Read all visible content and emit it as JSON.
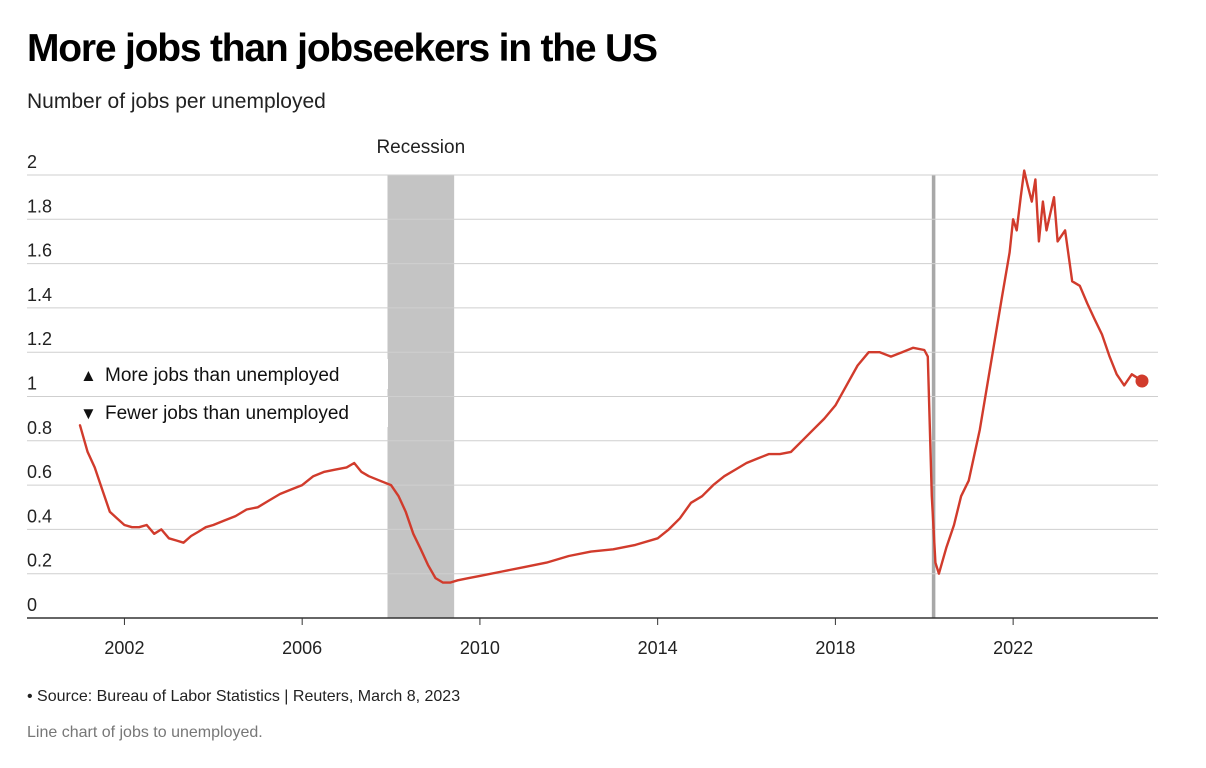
{
  "header": {
    "title": "More jobs than jobseekers in the US",
    "subtitle": "Number of jobs per unemployed"
  },
  "footer": {
    "source": "• Source: Bureau of Labor Statistics | Reuters, March 8, 2023",
    "caption": "Line chart of jobs to unemployed."
  },
  "colors": {
    "line": "#d13b2c",
    "recession": "#c4c4c4",
    "covid_band": "#a8a8a8",
    "grid": "#cfcfcf",
    "axis": "#333333",
    "text": "#222222"
  },
  "chart_data": {
    "type": "line",
    "title": "More jobs than jobseekers in the US",
    "subtitle": "Number of jobs per unemployed",
    "xlabel": "",
    "ylabel": "",
    "xlim": [
      2001.0,
      2024.9
    ],
    "ylim": [
      0,
      2.0
    ],
    "y_ticks": [
      {
        "value": 0,
        "label": "0"
      },
      {
        "value": 0.2,
        "label": "0.2"
      },
      {
        "value": 0.4,
        "label": "0.4"
      },
      {
        "value": 0.6,
        "label": "0.6"
      },
      {
        "value": 0.8,
        "label": "0.8"
      },
      {
        "value": 1.0,
        "label": "1"
      },
      {
        "value": 1.2,
        "label": "1.2"
      },
      {
        "value": 1.4,
        "label": "1.4"
      },
      {
        "value": 1.6,
        "label": "1.6"
      },
      {
        "value": 1.8,
        "label": "1.8"
      },
      {
        "value": 2.0,
        "label": "2"
      }
    ],
    "x_ticks": [
      {
        "value": 2002,
        "label": "2002"
      },
      {
        "value": 2006,
        "label": "2006"
      },
      {
        "value": 2010,
        "label": "2010"
      },
      {
        "value": 2014,
        "label": "2014"
      },
      {
        "value": 2018,
        "label": "2018"
      },
      {
        "value": 2022,
        "label": "2022"
      }
    ],
    "grid": true,
    "shaded_periods": [
      {
        "start": 2007.92,
        "end": 2009.42,
        "label": "Recession"
      },
      {
        "start": 2020.17,
        "end": 2020.25,
        "label": ""
      }
    ],
    "annotations": [
      {
        "text": "More jobs than unemployed",
        "marker": "▲"
      },
      {
        "text": "Fewer jobs than unemployed",
        "marker": "▼"
      }
    ],
    "series": [
      {
        "color": "#d13b2c",
        "end_marker": true,
        "x": [
          2001.0,
          2001.17,
          2001.33,
          2001.5,
          2001.67,
          2001.83,
          2002.0,
          2002.17,
          2002.33,
          2002.5,
          2002.67,
          2002.83,
          2003.0,
          2003.17,
          2003.33,
          2003.5,
          2003.67,
          2003.83,
          2004.0,
          2004.25,
          2004.5,
          2004.75,
          2005.0,
          2005.25,
          2005.5,
          2005.75,
          2006.0,
          2006.25,
          2006.5,
          2006.75,
          2007.0,
          2007.17,
          2007.33,
          2007.5,
          2007.75,
          2008.0,
          2008.17,
          2008.33,
          2008.5,
          2008.67,
          2008.83,
          2009.0,
          2009.17,
          2009.33,
          2009.5,
          2009.75,
          2010.0,
          2010.5,
          2011.0,
          2011.5,
          2012.0,
          2012.5,
          2013.0,
          2013.5,
          2014.0,
          2014.25,
          2014.5,
          2014.75,
          2015.0,
          2015.25,
          2015.5,
          2015.75,
          2016.0,
          2016.25,
          2016.5,
          2016.75,
          2017.0,
          2017.25,
          2017.5,
          2017.75,
          2018.0,
          2018.25,
          2018.5,
          2018.75,
          2019.0,
          2019.25,
          2019.5,
          2019.75,
          2020.0,
          2020.08,
          2020.17,
          2020.25,
          2020.33,
          2020.5,
          2020.67,
          2020.83,
          2021.0,
          2021.25,
          2021.5,
          2021.75,
          2021.92,
          2022.0,
          2022.08,
          2022.17,
          2022.25,
          2022.33,
          2022.42,
          2022.5,
          2022.58,
          2022.67,
          2022.75,
          2022.83,
          2022.92,
          2023.0,
          2023.17,
          2023.33,
          2023.5,
          2023.67,
          2023.83,
          2024.0,
          2024.17,
          2024.33,
          2024.5,
          2024.67,
          2024.83,
          2024.9
        ],
        "y": [
          0.87,
          0.75,
          0.68,
          0.58,
          0.48,
          0.45,
          0.42,
          0.41,
          0.41,
          0.42,
          0.38,
          0.4,
          0.36,
          0.35,
          0.34,
          0.37,
          0.39,
          0.41,
          0.42,
          0.44,
          0.46,
          0.49,
          0.5,
          0.53,
          0.56,
          0.58,
          0.6,
          0.64,
          0.66,
          0.67,
          0.68,
          0.7,
          0.66,
          0.64,
          0.62,
          0.6,
          0.55,
          0.48,
          0.38,
          0.31,
          0.24,
          0.18,
          0.16,
          0.16,
          0.17,
          0.18,
          0.19,
          0.21,
          0.23,
          0.25,
          0.28,
          0.3,
          0.31,
          0.33,
          0.36,
          0.4,
          0.45,
          0.52,
          0.55,
          0.6,
          0.64,
          0.67,
          0.7,
          0.72,
          0.74,
          0.74,
          0.75,
          0.8,
          0.85,
          0.9,
          0.96,
          1.05,
          1.14,
          1.2,
          1.2,
          1.18,
          1.2,
          1.22,
          1.21,
          1.18,
          0.55,
          0.25,
          0.2,
          0.32,
          0.42,
          0.55,
          0.62,
          0.85,
          1.15,
          1.45,
          1.65,
          1.8,
          1.75,
          1.9,
          2.02,
          1.95,
          1.88,
          1.98,
          1.7,
          1.88,
          1.75,
          1.82,
          1.9,
          1.7,
          1.75,
          1.52,
          1.5,
          1.42,
          1.35,
          1.28,
          1.18,
          1.1,
          1.05,
          1.1,
          1.08,
          1.07
        ]
      }
    ]
  }
}
